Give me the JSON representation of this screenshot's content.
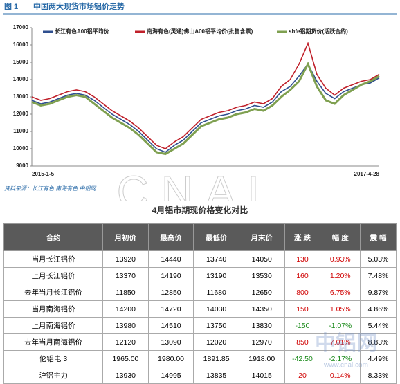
{
  "figure_label": "图 1",
  "chart_data": {
    "type": "line",
    "title": "中国两大现货市场铝价走势",
    "categories": [
      "2015-1-5",
      null,
      null,
      null,
      null,
      null,
      null,
      null,
      null,
      null,
      null,
      null,
      null,
      null,
      null,
      null,
      null,
      null,
      null,
      null,
      null,
      null,
      null,
      null,
      null,
      null,
      null,
      null,
      null,
      null,
      null,
      null,
      null,
      null,
      null,
      null,
      null,
      null,
      null,
      "2017-4-28"
    ],
    "series": [
      {
        "name": "长江有色A00铝平均价",
        "color": "#2f4f8f",
        "values": [
          12800,
          12600,
          12700,
          12900,
          13100,
          13200,
          13100,
          12800,
          12400,
          12000,
          11700,
          11400,
          11000,
          10500,
          10000,
          9800,
          10200,
          10500,
          11000,
          11500,
          11700,
          11900,
          12000,
          12200,
          12300,
          12500,
          12400,
          12700,
          13300,
          13600,
          14200,
          14900,
          13900,
          13200,
          12900,
          13300,
          13500,
          13700,
          13800,
          14100
        ]
      },
      {
        "name": "南海有色(灵通)佛山A00铝平均价(批售含票)",
        "color": "#c0202a",
        "values": [
          13000,
          12800,
          12900,
          13100,
          13300,
          13400,
          13300,
          13000,
          12600,
          12200,
          11900,
          11600,
          11200,
          10700,
          10200,
          10000,
          10400,
          10700,
          11200,
          11700,
          11900,
          12100,
          12200,
          12400,
          12500,
          12700,
          12600,
          12900,
          13600,
          14000,
          14900,
          16100,
          14300,
          13500,
          13100,
          13500,
          13700,
          13900,
          14000,
          14300
        ]
      },
      {
        "name": "shfe铝期货价(活跃合约)",
        "color": "#7fa050",
        "values": [
          12700,
          12500,
          12600,
          12800,
          13000,
          13100,
          13000,
          12600,
          12200,
          11800,
          11500,
          11200,
          10800,
          10300,
          9800,
          9700,
          10000,
          10300,
          10800,
          11300,
          11500,
          11700,
          11800,
          12000,
          12100,
          12300,
          12200,
          12500,
          13000,
          13400,
          13900,
          14900,
          13600,
          12800,
          12600,
          13100,
          13400,
          13700,
          13900,
          14200
        ]
      }
    ],
    "ylim": [
      9000,
      17000
    ],
    "yticks": [
      9000,
      10000,
      11000,
      12000,
      13000,
      14000,
      15000,
      16000,
      17000
    ]
  },
  "source": "资料来源：长江有色  南海有色  中铝网",
  "watermark": {
    "logo": "CNAL",
    "name": "中铝网",
    "url": "www.cnal.com"
  },
  "table": {
    "title": "4月铝市期现价格变化对比",
    "header": [
      "合约",
      "月初价",
      "最高价",
      "最低价",
      "月末价",
      "涨 跌",
      "幅 度",
      "震 幅"
    ],
    "rows": [
      [
        "当月长江铝价",
        "13920",
        "14440",
        "13740",
        "14050",
        "130",
        "0.93%",
        "5.03%"
      ],
      [
        "上月长江铝价",
        "13370",
        "14190",
        "13190",
        "13530",
        "160",
        "1.20%",
        "7.48%"
      ],
      [
        "去年当月长江铝价",
        "11850",
        "12850",
        "11680",
        "12650",
        "800",
        "6.75%",
        "9.87%"
      ],
      [
        "当月南海铝价",
        "14200",
        "14720",
        "14030",
        "14350",
        "150",
        "1.05%",
        "4.86%"
      ],
      [
        "上月南海铝价",
        "13980",
        "14510",
        "13750",
        "13830",
        "-150",
        "-1.07%",
        "5.44%"
      ],
      [
        "去年当月南海铝价",
        "12120",
        "13090",
        "12020",
        "12970",
        "850",
        "7.01%",
        "8.83%"
      ],
      [
        "伦铝电 3",
        "1965.00",
        "1980.00",
        "1891.85",
        "1918.00",
        "-42.50",
        "-2.17%",
        "4.49%"
      ],
      [
        "沪铝主力",
        "13930",
        "14995",
        "13835",
        "14015",
        "20",
        "0.14%",
        "8.33%"
      ]
    ]
  }
}
